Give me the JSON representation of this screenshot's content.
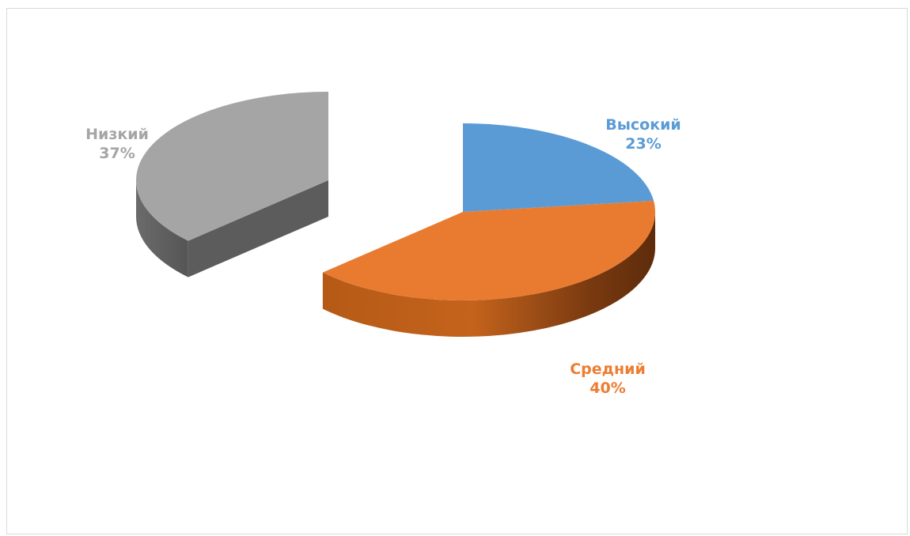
{
  "chart_data": {
    "type": "pie",
    "style": "3d-exploded",
    "title": "",
    "slices": [
      {
        "label": "Высокий",
        "value": 23,
        "display": "23%",
        "color": "#5b9bd5"
      },
      {
        "label": "Средний",
        "value": 40,
        "display": "40%",
        "color": "#ed7d31"
      },
      {
        "label": "Низкий",
        "value": 37,
        "display": "37%",
        "color": "#a5a5a5",
        "exploded": true
      }
    ]
  }
}
